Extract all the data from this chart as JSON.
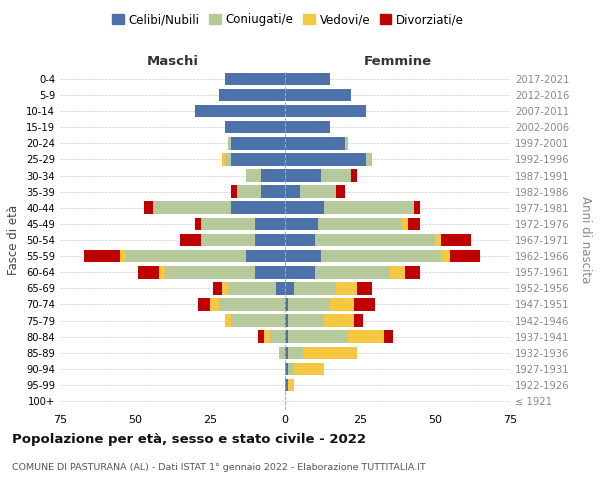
{
  "age_groups": [
    "100+",
    "95-99",
    "90-94",
    "85-89",
    "80-84",
    "75-79",
    "70-74",
    "65-69",
    "60-64",
    "55-59",
    "50-54",
    "45-49",
    "40-44",
    "35-39",
    "30-34",
    "25-29",
    "20-24",
    "15-19",
    "10-14",
    "5-9",
    "0-4"
  ],
  "birth_years": [
    "≤ 1921",
    "1922-1926",
    "1927-1931",
    "1932-1936",
    "1937-1941",
    "1942-1946",
    "1947-1951",
    "1952-1956",
    "1957-1961",
    "1962-1966",
    "1967-1971",
    "1972-1976",
    "1977-1981",
    "1982-1986",
    "1987-1991",
    "1992-1996",
    "1997-2001",
    "2002-2006",
    "2007-2011",
    "2012-2016",
    "2017-2021"
  ],
  "male": {
    "celibi": [
      0,
      0,
      0,
      0,
      0,
      0,
      0,
      3,
      10,
      13,
      10,
      10,
      18,
      8,
      8,
      18,
      18,
      20,
      30,
      22,
      20
    ],
    "coniugati": [
      0,
      0,
      0,
      2,
      5,
      18,
      22,
      16,
      30,
      40,
      18,
      18,
      26,
      8,
      5,
      2,
      1,
      0,
      0,
      0,
      0
    ],
    "vedovi": [
      0,
      0,
      0,
      0,
      2,
      2,
      3,
      2,
      2,
      2,
      0,
      0,
      0,
      0,
      0,
      1,
      0,
      0,
      0,
      0,
      0
    ],
    "divorziati": [
      0,
      0,
      0,
      0,
      2,
      0,
      4,
      3,
      7,
      12,
      7,
      2,
      3,
      2,
      0,
      0,
      0,
      0,
      0,
      0,
      0
    ]
  },
  "female": {
    "nubili": [
      0,
      1,
      1,
      1,
      1,
      1,
      1,
      3,
      10,
      12,
      10,
      11,
      13,
      5,
      12,
      27,
      20,
      15,
      27,
      22,
      15
    ],
    "coniugate": [
      0,
      0,
      2,
      5,
      20,
      12,
      14,
      14,
      25,
      40,
      40,
      28,
      30,
      12,
      10,
      2,
      1,
      0,
      0,
      0,
      0
    ],
    "vedove": [
      0,
      2,
      10,
      18,
      12,
      10,
      8,
      7,
      5,
      3,
      2,
      2,
      0,
      0,
      0,
      0,
      0,
      0,
      0,
      0,
      0
    ],
    "divorziate": [
      0,
      0,
      0,
      0,
      3,
      3,
      7,
      5,
      5,
      10,
      10,
      4,
      2,
      3,
      2,
      0,
      0,
      0,
      0,
      0,
      0
    ]
  },
  "colors": {
    "celibi": "#4d72aa",
    "coniugati": "#b5c99a",
    "vedovi": "#f5c842",
    "divorziati": "#c00000"
  },
  "title": "Popolazione per età, sesso e stato civile - 2022",
  "subtitle": "COMUNE DI PASTURANA (AL) - Dati ISTAT 1° gennaio 2022 - Elaborazione TUTTITALIA.IT",
  "xlabel_left": "Maschi",
  "xlabel_right": "Femmine",
  "ylabel_left": "Fasce di età",
  "ylabel_right": "Anni di nascita",
  "xlim": 75,
  "legend_labels": [
    "Celibi/Nubili",
    "Coniugati/e",
    "Vedovi/e",
    "Divorziati/e"
  ],
  "background_color": "#ffffff",
  "grid_color": "#cccccc"
}
